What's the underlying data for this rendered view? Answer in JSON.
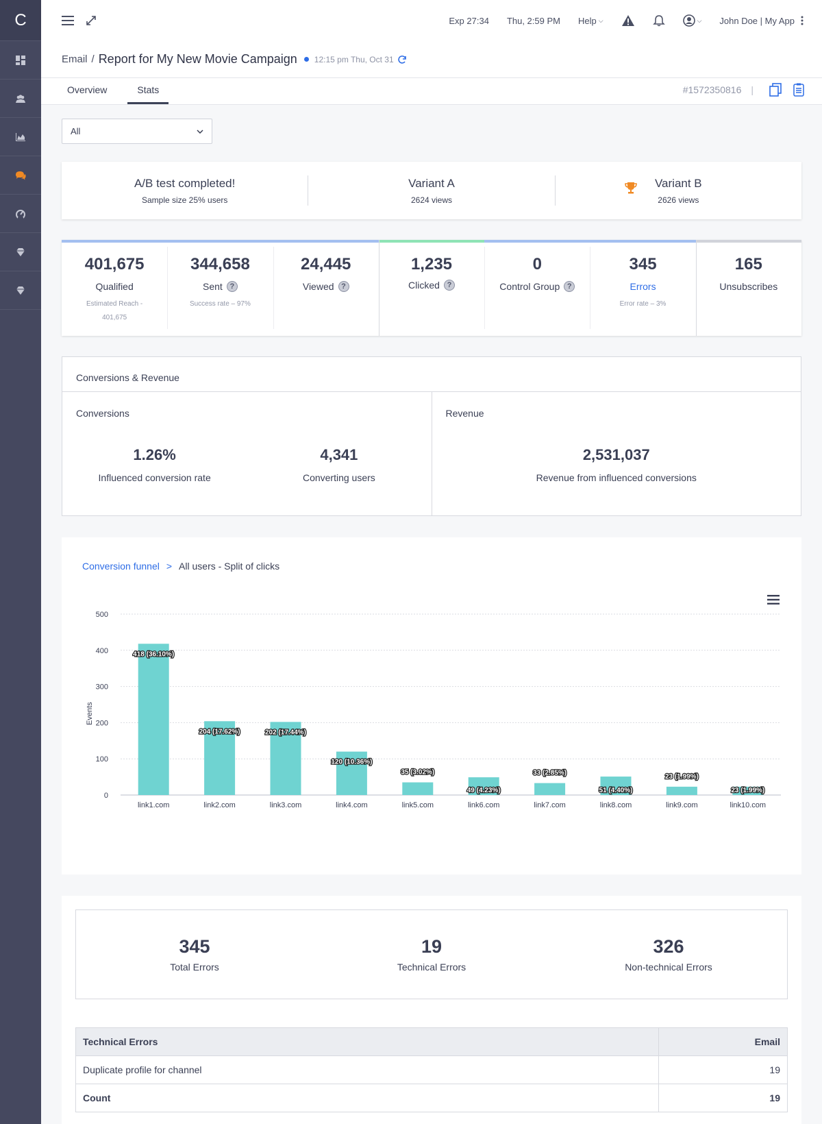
{
  "app": {
    "logo_letter": "C"
  },
  "header": {
    "exp": "Exp 27:34",
    "datetime": "Thu, 2:59 PM",
    "help": "Help",
    "user": "John Doe | My App"
  },
  "breadcrumb": {
    "parent": "Email",
    "separator": "/",
    "title": "Report for My New Movie Campaign",
    "time": "12:15 pm Thu, Oct 31"
  },
  "tabs": [
    {
      "label": "Overview"
    },
    {
      "label": "Stats"
    }
  ],
  "campaign_id": "#1572350816",
  "filter": {
    "selected": "All"
  },
  "ab_test": {
    "status": {
      "title": "A/B test completed!",
      "sub": "Sample size 25% users"
    },
    "variant_a": {
      "title": "Variant A",
      "sub": "2624 views"
    },
    "variant_b": {
      "title": "Variant B",
      "sub": "2626 views"
    }
  },
  "metrics": [
    {
      "value": "401,675",
      "label": "Qualified",
      "sub": "Estimated Reach - 401,675",
      "color": "#a3bff0"
    },
    {
      "value": "344,658",
      "label": "Sent",
      "sub": "Success rate – 97%",
      "color": "#a3bff0"
    },
    {
      "value": "24,445",
      "label": "Viewed",
      "sub": "",
      "color": "#a3bff0"
    },
    {
      "value": "1,235",
      "label": "Clicked",
      "sub": "",
      "color": "#8ee3b5"
    },
    {
      "value": "0",
      "label": "Control Group",
      "sub": "",
      "color": "#a3bff0"
    },
    {
      "value": "345",
      "label": "Errors",
      "sub": "Error rate – 3%",
      "color": "#a3bff0"
    },
    {
      "value": "165",
      "label": "Unsubscribes",
      "sub": "",
      "color": "#d1d3da"
    }
  ],
  "conversions": {
    "title": "Conversions & Revenue",
    "conversions_label": "Conversions",
    "rate": {
      "value": "1.26%",
      "label": "Influenced conversion rate"
    },
    "users": {
      "value": "4,341",
      "label": "Converting users"
    },
    "revenue_label": "Revenue",
    "revenue": {
      "value": "2,531,037",
      "label": "Revenue from influenced conversions"
    }
  },
  "funnel": {
    "link": "Conversion funnel",
    "sep": ">",
    "current": "All users - Split of clicks"
  },
  "chart_data": {
    "type": "bar",
    "ylabel": "Events",
    "ylim": [
      0,
      500
    ],
    "yticks": [
      0,
      100,
      200,
      300,
      400,
      500
    ],
    "bar_color": "#6fd3d1",
    "categories": [
      "link1.com",
      "link2.com",
      "link3.com",
      "link4.com",
      "link5.com",
      "link6.com",
      "link7.com",
      "link8.com",
      "link9.com",
      "link10.com"
    ],
    "values": [
      418,
      204,
      202,
      120,
      35,
      49,
      33,
      51,
      23,
      23
    ],
    "labels": [
      "418 (36.10%)",
      "204 (17.62%)",
      "202 (17.44%)",
      "120 (10.36%)",
      "35 (3.02%)",
      "49 (4.23%)",
      "33 (2.85%)",
      "51 (4.40%)",
      "23 (1.99%)",
      "23 (1.99%)"
    ],
    "grid": true
  },
  "errors": {
    "total": {
      "value": "345",
      "label": "Total Errors"
    },
    "technical": {
      "value": "19",
      "label": "Technical Errors"
    },
    "nontechnical": {
      "value": "326",
      "label": "Non-technical Errors"
    },
    "table": {
      "headers": [
        "Technical Errors",
        "Email"
      ],
      "rows": [
        {
          "name": "Duplicate profile for channel",
          "email": "19"
        },
        {
          "name": "Count",
          "email": "19"
        }
      ]
    }
  }
}
